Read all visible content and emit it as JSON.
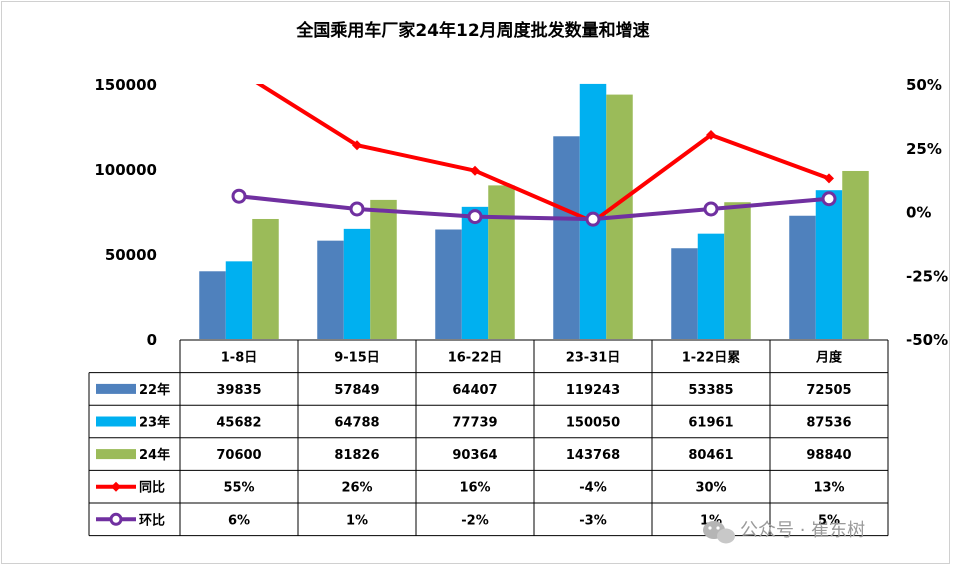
{
  "chart_data": {
    "type": "bar",
    "title": "全国乘用车厂家24年12月周度批发数量和增速",
    "categories": [
      "1-8日",
      "9-15日",
      "16-22日",
      "23-31日",
      "1-22日累",
      "月度"
    ],
    "ylim": [
      0,
      150000
    ],
    "y_ticks": [
      "150000",
      "100000",
      "50000",
      "0"
    ],
    "y2lim": [
      -50,
      50
    ],
    "y2_ticks": [
      "50%",
      "25%",
      "0%",
      "-25%",
      "-50%"
    ],
    "series": [
      {
        "name": "22年",
        "type": "bar",
        "color": "#4f81bd",
        "values": [
          39835,
          57849,
          64407,
          119243,
          53385,
          72505
        ]
      },
      {
        "name": "23年",
        "type": "bar",
        "color": "#00b0f0",
        "values": [
          45682,
          64788,
          77739,
          150050,
          61961,
          87536
        ]
      },
      {
        "name": "24年",
        "type": "bar",
        "color": "#9bbb59",
        "values": [
          70600,
          81826,
          90364,
          143768,
          80461,
          98840
        ]
      },
      {
        "name": "同比",
        "type": "line",
        "axis": "secondary",
        "marker": "diamond",
        "color": "#ff0000",
        "values": [
          55,
          26,
          16,
          -4,
          30,
          13
        ],
        "labels": [
          "55%",
          "26%",
          "16%",
          "-4%",
          "30%",
          "13%"
        ]
      },
      {
        "name": "环比",
        "type": "line",
        "axis": "secondary",
        "marker": "circle",
        "color": "#7030a0",
        "values": [
          6,
          1,
          -2,
          -3,
          1,
          5
        ],
        "labels": [
          "6%",
          "1%",
          "-2%",
          "-3%",
          "1%",
          "5%"
        ]
      }
    ],
    "data_table": true,
    "grid": false,
    "legend": "data-table"
  },
  "watermark": {
    "icon": "wechat-icon",
    "text": "公众号 · 崔东树"
  }
}
